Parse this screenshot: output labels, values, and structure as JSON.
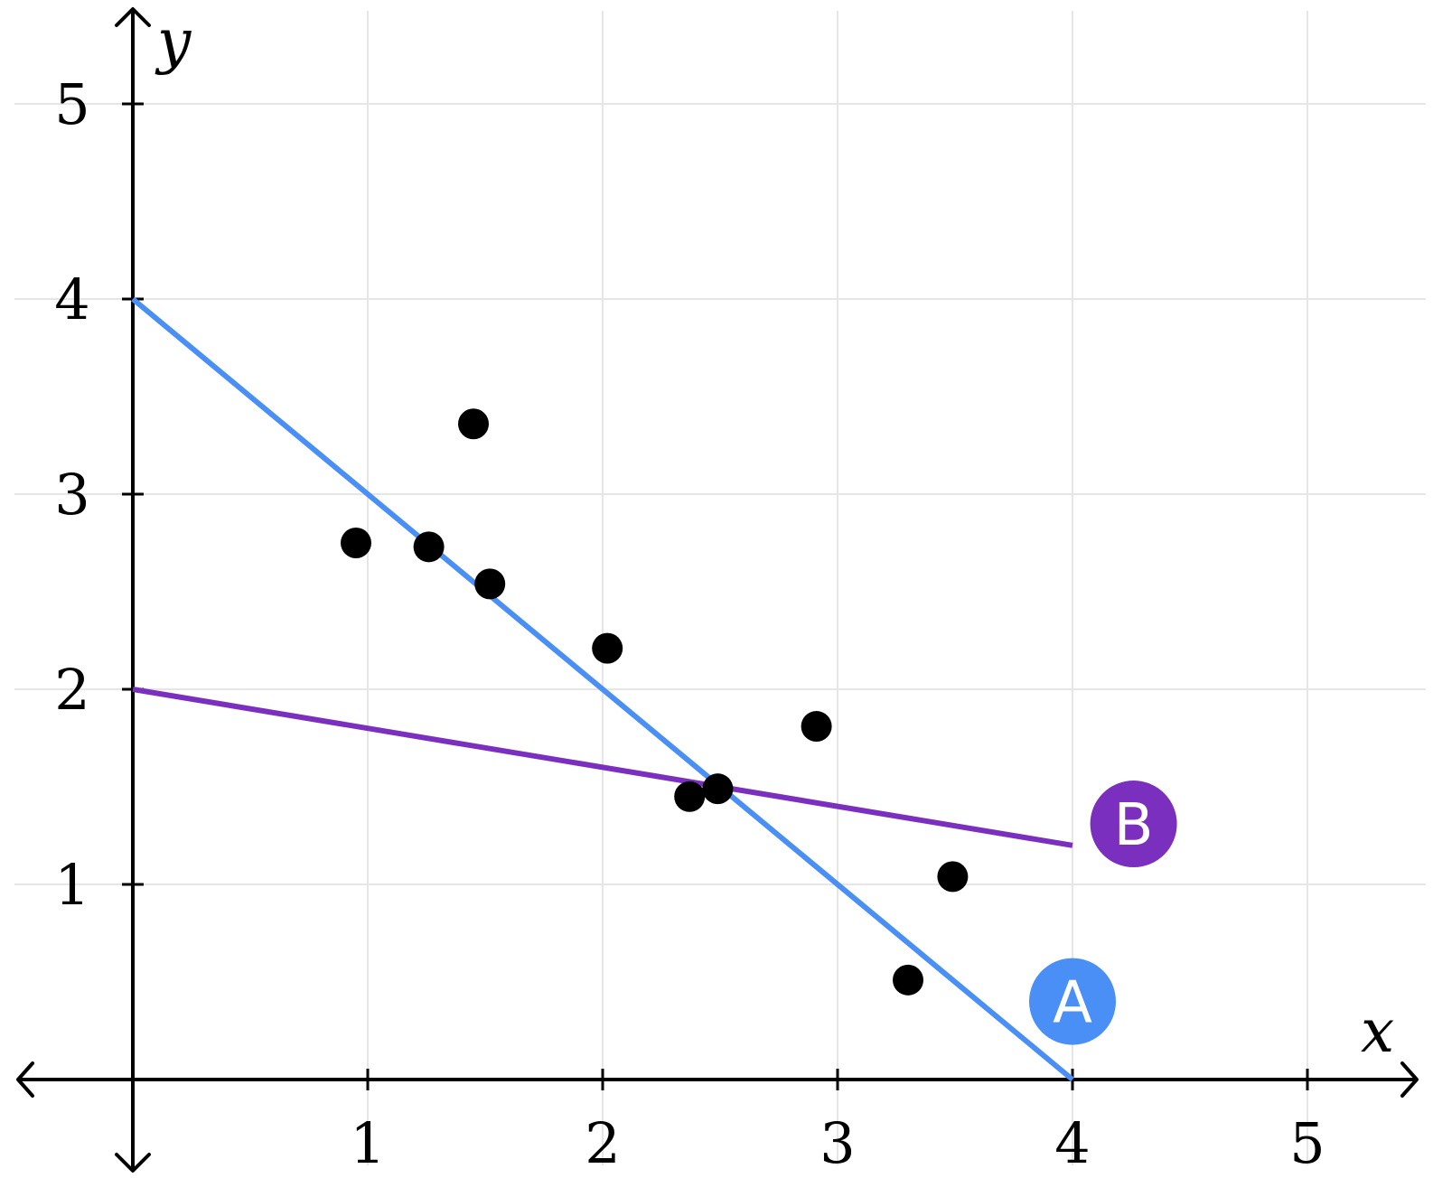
{
  "chart_data": {
    "type": "scatter",
    "xlabel": "x",
    "ylabel": "y",
    "xlim": [
      -0.5,
      5.5
    ],
    "ylim": [
      0,
      5.5
    ],
    "xticks": [
      "1",
      "2",
      "3",
      "4",
      "5"
    ],
    "yticks": [
      "1",
      "2",
      "3",
      "4",
      "5"
    ],
    "grid": true,
    "points": [
      {
        "x": 0.95,
        "y": 2.75
      },
      {
        "x": 1.26,
        "y": 2.73
      },
      {
        "x": 1.45,
        "y": 3.36
      },
      {
        "x": 1.52,
        "y": 2.54
      },
      {
        "x": 2.02,
        "y": 2.21
      },
      {
        "x": 2.37,
        "y": 1.45
      },
      {
        "x": 2.49,
        "y": 1.49
      },
      {
        "x": 2.91,
        "y": 1.81
      },
      {
        "x": 3.3,
        "y": 0.51
      },
      {
        "x": 3.49,
        "y": 1.04
      }
    ],
    "lines": [
      {
        "name": "A",
        "color": "#4a8ff6",
        "x1": 0,
        "y1": 4,
        "x2": 4,
        "y2": 0
      },
      {
        "name": "B",
        "color": "#7b2fbf",
        "x1": 0,
        "y1": 2,
        "x2": 4,
        "y2": 1.2
      }
    ]
  }
}
